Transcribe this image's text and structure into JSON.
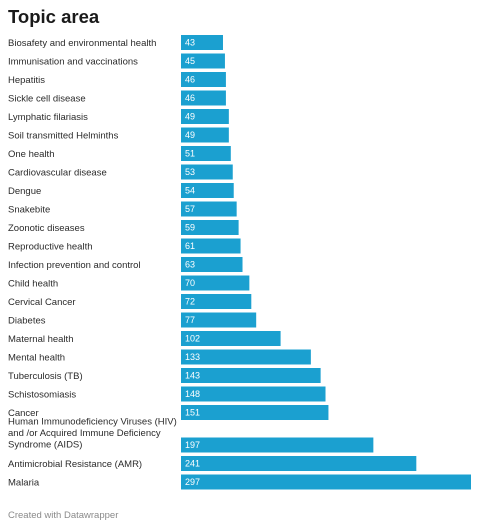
{
  "chart_data": {
    "type": "bar",
    "orientation": "horizontal",
    "title": "Topic area",
    "bar_color": "#1ba0d0",
    "label_color": "#ffffff",
    "categories": [
      "Biosafety and environmental health",
      "Immunisation and vaccinations",
      "Hepatitis",
      "Sickle cell disease",
      "Lymphatic filariasis",
      "Soil transmitted Helminths",
      "One health",
      "Cardiovascular disease",
      "Dengue",
      "Snakebite",
      "Zoonotic diseases",
      "Reproductive health",
      "Infection prevention and control",
      "Child health",
      "Cervical Cancer",
      "Diabetes",
      "Maternal health",
      "Mental health",
      "Tuberculosis (TB)",
      "Schistosomiasis",
      "Cancer",
      "Human Immunodeficiency Viruses (HIV) and /or Acquired Immune Deficiency Syndrome (AIDS)",
      "Antimicrobial Resistance (AMR)",
      "Malaria"
    ],
    "values": [
      43,
      45,
      46,
      46,
      49,
      49,
      51,
      53,
      54,
      57,
      59,
      61,
      63,
      70,
      72,
      77,
      102,
      133,
      143,
      148,
      151,
      197,
      241,
      297
    ]
  },
  "footer": {
    "credit": "Created with Datawrapper"
  }
}
